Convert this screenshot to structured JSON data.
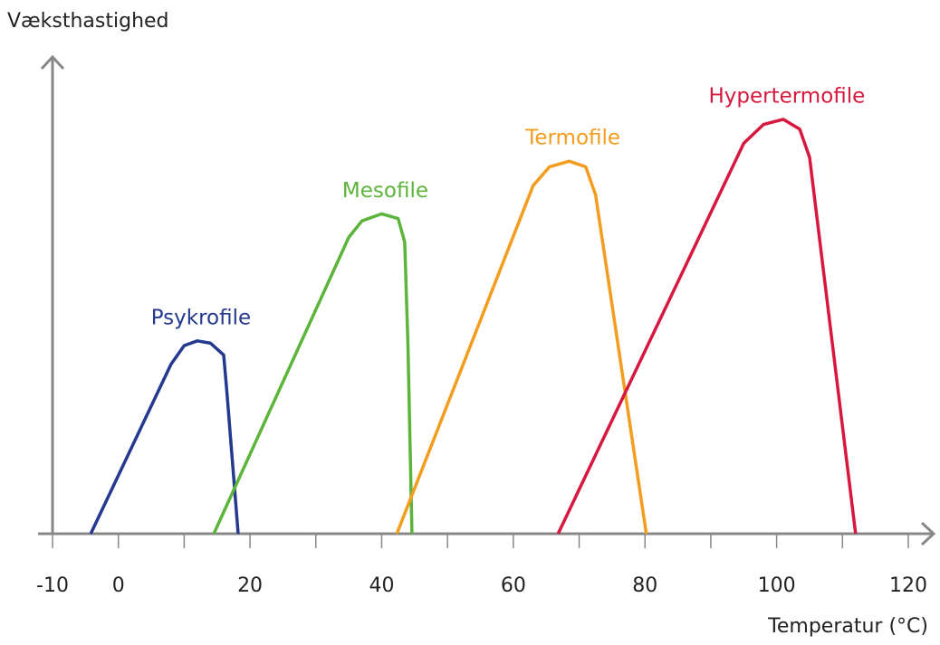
{
  "chart_data": {
    "type": "line",
    "x_label": "Temperatur (°C)",
    "y_label": "Væksthastighed",
    "xlim": [
      -10,
      120
    ],
    "ylim": [
      0,
      100
    ],
    "xticks": [
      -10,
      0,
      20,
      40,
      60,
      80,
      100,
      120
    ],
    "x_minor_ticks": [
      10,
      30,
      50,
      70,
      90,
      110
    ],
    "series": [
      {
        "name": "Psykrofile",
        "color": "#24398f",
        "x": [
          -4.2,
          8,
          10,
          12,
          14,
          16,
          16.5,
          18.2
        ],
        "values": [
          0,
          36,
          40,
          41,
          40.5,
          38,
          30,
          0
        ]
      },
      {
        "name": "Mesofile",
        "color": "#5cb43a",
        "x": [
          14.5,
          35,
          37,
          40,
          42.5,
          43.5,
          44,
          44.6
        ],
        "values": [
          0,
          63,
          66.5,
          68,
          67,
          62,
          40,
          0
        ]
      },
      {
        "name": "Termofile",
        "color": "#f39c1e",
        "x": [
          42.3,
          63,
          65.5,
          68.5,
          71,
          72.5,
          80.2
        ],
        "values": [
          0,
          74,
          78,
          79.2,
          78,
          72,
          0
        ]
      },
      {
        "name": "Hypertermofile",
        "color": "#d6183e",
        "x": [
          66.8,
          95,
          98,
          101,
          103.5,
          105,
          112
        ],
        "values": [
          0,
          83,
          87,
          88.1,
          86,
          80,
          0
        ]
      }
    ]
  }
}
